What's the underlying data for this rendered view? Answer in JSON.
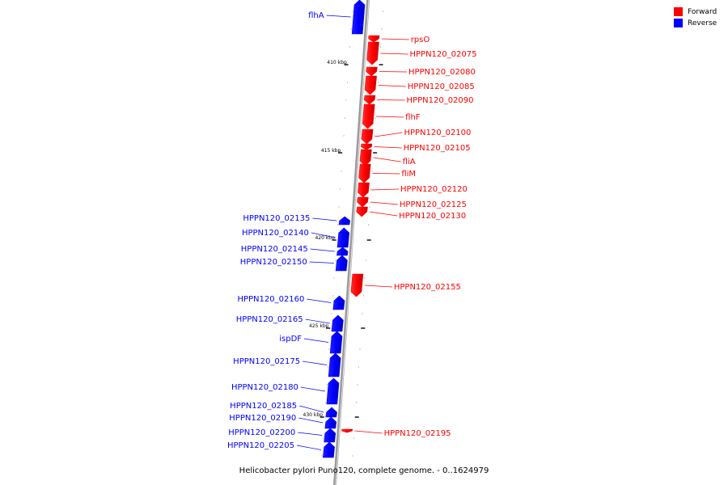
{
  "legend": {
    "forward_label": "Forward",
    "forward_color": "#ff0000",
    "reverse_label": "Reverse",
    "reverse_color": "#0000ff"
  },
  "caption": "Helicobacter pylori Puno120, complete genome. - 0..1624979",
  "genome_scale": {
    "ticks": [
      "410 kbp",
      "415 kbp",
      "420 kbp",
      "425 kbp",
      "430 kbp"
    ]
  },
  "genes": [
    {
      "name": "flhA",
      "strand": "reverse"
    },
    {
      "name": "rpsO",
      "strand": "forward"
    },
    {
      "name": "HPPN120_02075",
      "strand": "forward"
    },
    {
      "name": "HPPN120_02080",
      "strand": "forward"
    },
    {
      "name": "HPPN120_02085",
      "strand": "forward"
    },
    {
      "name": "HPPN120_02090",
      "strand": "forward"
    },
    {
      "name": "flhF",
      "strand": "forward"
    },
    {
      "name": "HPPN120_02100",
      "strand": "forward"
    },
    {
      "name": "HPPN120_02105",
      "strand": "forward"
    },
    {
      "name": "fliA",
      "strand": "forward"
    },
    {
      "name": "fliM",
      "strand": "forward"
    },
    {
      "name": "HPPN120_02120",
      "strand": "forward"
    },
    {
      "name": "HPPN120_02125",
      "strand": "forward"
    },
    {
      "name": "HPPN120_02130",
      "strand": "forward"
    },
    {
      "name": "HPPN120_02135",
      "strand": "reverse"
    },
    {
      "name": "HPPN120_02140",
      "strand": "reverse"
    },
    {
      "name": "HPPN120_02145",
      "strand": "reverse"
    },
    {
      "name": "HPPN120_02150",
      "strand": "reverse"
    },
    {
      "name": "HPPN120_02155",
      "strand": "forward"
    },
    {
      "name": "HPPN120_02160",
      "strand": "reverse"
    },
    {
      "name": "HPPN120_02165",
      "strand": "reverse"
    },
    {
      "name": "ispDF",
      "strand": "reverse"
    },
    {
      "name": "HPPN120_02175",
      "strand": "reverse"
    },
    {
      "name": "HPPN120_02180",
      "strand": "reverse"
    },
    {
      "name": "HPPN120_02185",
      "strand": "reverse"
    },
    {
      "name": "HPPN120_02190",
      "strand": "reverse"
    },
    {
      "name": "HPPN120_02195",
      "strand": "forward"
    },
    {
      "name": "HPPN120_02200",
      "strand": "reverse"
    },
    {
      "name": "HPPN120_02205",
      "strand": "reverse"
    }
  ]
}
